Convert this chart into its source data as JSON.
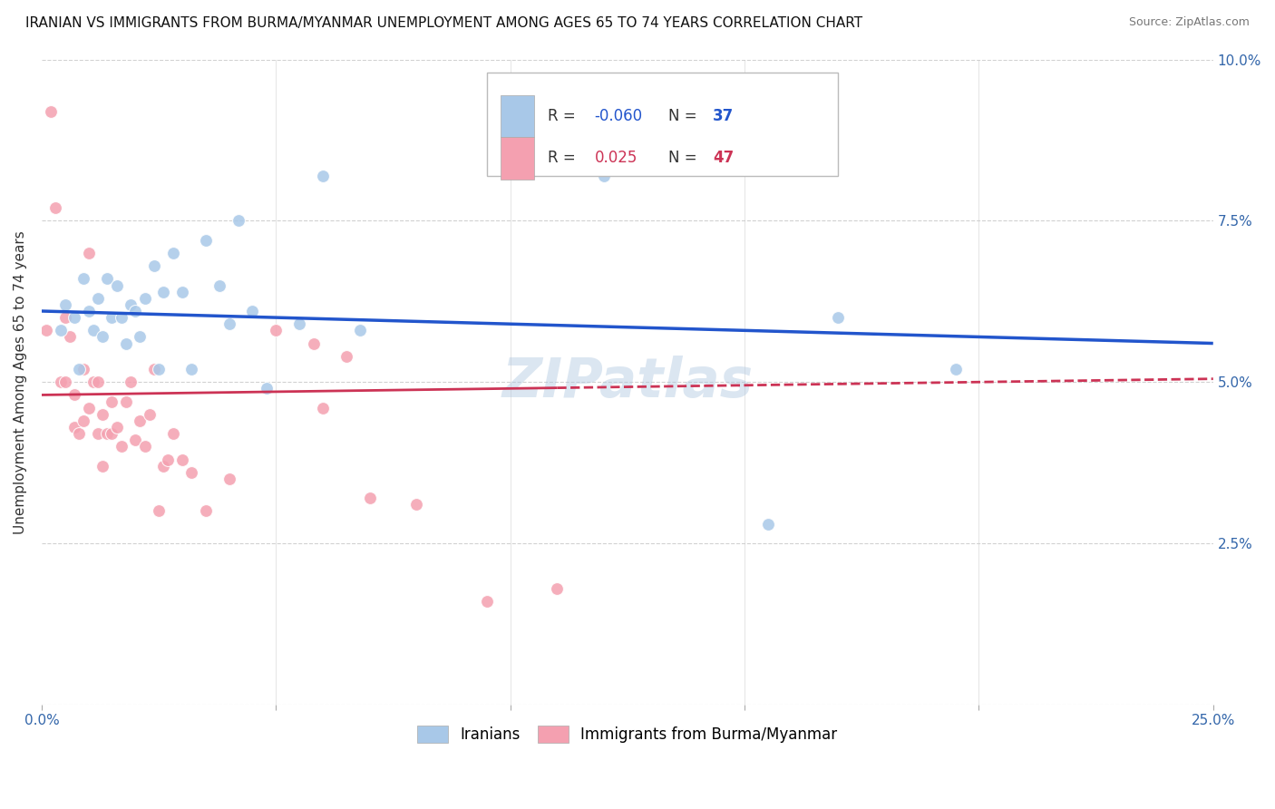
{
  "title": "IRANIAN VS IMMIGRANTS FROM BURMA/MYANMAR UNEMPLOYMENT AMONG AGES 65 TO 74 YEARS CORRELATION CHART",
  "source": "Source: ZipAtlas.com",
  "ylabel": "Unemployment Among Ages 65 to 74 years",
  "xlim": [
    0,
    0.25
  ],
  "ylim": [
    0,
    0.1
  ],
  "xticks": [
    0.0,
    0.05,
    0.1,
    0.15,
    0.2,
    0.25
  ],
  "xticklabels": [
    "0.0%",
    "",
    "",
    "",
    "",
    "25.0%"
  ],
  "yticks": [
    0.0,
    0.025,
    0.05,
    0.075,
    0.1
  ],
  "yticklabels_right": [
    "",
    "2.5%",
    "5.0%",
    "7.5%",
    "10.0%"
  ],
  "legend_r_blue": "-0.060",
  "legend_n_blue": "37",
  "legend_r_pink": "0.025",
  "legend_n_pink": "47",
  "legend_label_blue": "Iranians",
  "legend_label_pink": "Immigrants from Burma/Myanmar",
  "blue_color": "#a8c8e8",
  "pink_color": "#f4a0b0",
  "blue_line_color": "#2255cc",
  "pink_line_color": "#cc3355",
  "background_color": "#ffffff",
  "grid_color": "#cccccc",
  "watermark": "ZIPatlas",
  "iranians_x": [
    0.004,
    0.005,
    0.007,
    0.008,
    0.009,
    0.01,
    0.011,
    0.012,
    0.013,
    0.014,
    0.015,
    0.016,
    0.017,
    0.018,
    0.019,
    0.02,
    0.021,
    0.022,
    0.024,
    0.025,
    0.026,
    0.028,
    0.03,
    0.032,
    0.035,
    0.038,
    0.04,
    0.042,
    0.045,
    0.048,
    0.055,
    0.06,
    0.068,
    0.12,
    0.155,
    0.17,
    0.195
  ],
  "iranians_y": [
    0.058,
    0.062,
    0.06,
    0.052,
    0.066,
    0.061,
    0.058,
    0.063,
    0.057,
    0.066,
    0.06,
    0.065,
    0.06,
    0.056,
    0.062,
    0.061,
    0.057,
    0.063,
    0.068,
    0.052,
    0.064,
    0.07,
    0.064,
    0.052,
    0.072,
    0.065,
    0.059,
    0.075,
    0.061,
    0.049,
    0.059,
    0.082,
    0.058,
    0.082,
    0.028,
    0.06,
    0.052
  ],
  "burma_x": [
    0.001,
    0.002,
    0.003,
    0.004,
    0.005,
    0.005,
    0.006,
    0.007,
    0.007,
    0.008,
    0.009,
    0.009,
    0.01,
    0.01,
    0.011,
    0.012,
    0.012,
    0.013,
    0.013,
    0.014,
    0.015,
    0.015,
    0.016,
    0.017,
    0.018,
    0.019,
    0.02,
    0.021,
    0.022,
    0.023,
    0.024,
    0.025,
    0.026,
    0.027,
    0.028,
    0.03,
    0.032,
    0.035,
    0.04,
    0.05,
    0.058,
    0.06,
    0.065,
    0.07,
    0.08,
    0.095,
    0.11
  ],
  "burma_y": [
    0.058,
    0.092,
    0.077,
    0.05,
    0.06,
    0.05,
    0.057,
    0.048,
    0.043,
    0.042,
    0.052,
    0.044,
    0.046,
    0.07,
    0.05,
    0.05,
    0.042,
    0.045,
    0.037,
    0.042,
    0.042,
    0.047,
    0.043,
    0.04,
    0.047,
    0.05,
    0.041,
    0.044,
    0.04,
    0.045,
    0.052,
    0.03,
    0.037,
    0.038,
    0.042,
    0.038,
    0.036,
    0.03,
    0.035,
    0.058,
    0.056,
    0.046,
    0.054,
    0.032,
    0.031,
    0.016,
    0.018
  ]
}
